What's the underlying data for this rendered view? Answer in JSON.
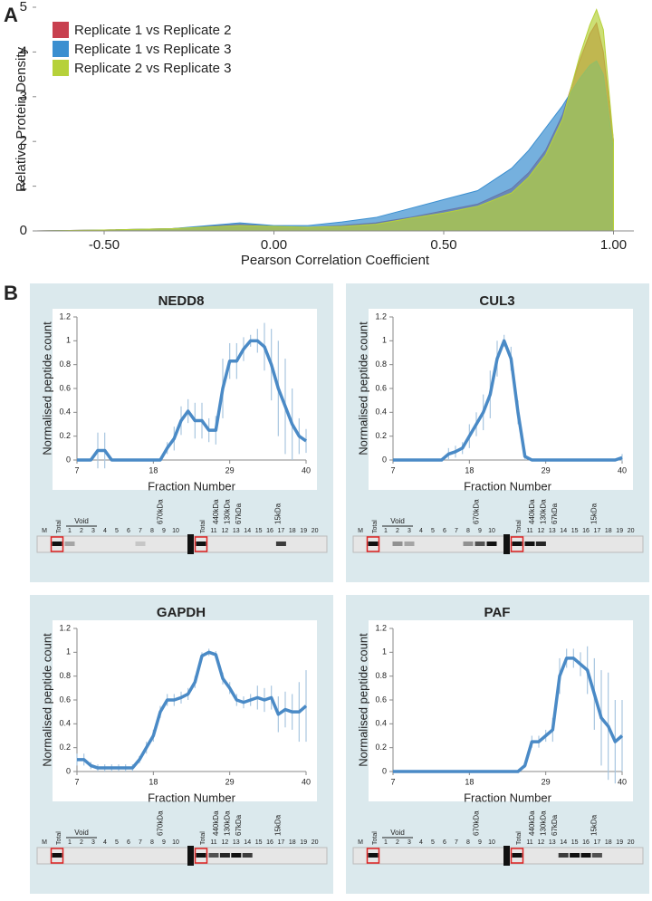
{
  "panel_labels": [
    "A",
    "B"
  ],
  "chart_data": [
    {
      "type": "area",
      "xlabel": "Pearson Correlation Coefficient",
      "ylabel": "Relative Protein Density",
      "x": [
        -0.7,
        -0.5,
        -0.3,
        -0.1,
        0,
        0.1,
        0.2,
        0.3,
        0.4,
        0.5,
        0.6,
        0.7,
        0.75,
        0.8,
        0.85,
        0.9,
        0.93,
        0.95,
        0.97,
        1.0
      ],
      "series": [
        {
          "name": "Replicate 1 vs Replicate 2",
          "color": "#c8404f",
          "values": [
            0,
            0.02,
            0.05,
            0.15,
            0.1,
            0.08,
            0.12,
            0.18,
            0.3,
            0.45,
            0.6,
            0.95,
            1.3,
            1.8,
            2.6,
            3.8,
            4.4,
            4.65,
            4.0,
            2.0
          ]
        },
        {
          "name": "Replicate 1 vs Replicate 3",
          "color": "#3b8fd0",
          "values": [
            0,
            0.02,
            0.05,
            0.18,
            0.12,
            0.12,
            0.2,
            0.3,
            0.5,
            0.7,
            0.9,
            1.4,
            1.8,
            2.3,
            2.8,
            3.4,
            3.7,
            3.8,
            3.5,
            1.8
          ]
        },
        {
          "name": "Replicate 2 vs Replicate 3",
          "color": "#b6d13a",
          "values": [
            0,
            0.02,
            0.05,
            0.12,
            0.1,
            0.08,
            0.1,
            0.15,
            0.28,
            0.4,
            0.55,
            0.85,
            1.2,
            1.7,
            2.5,
            3.9,
            4.6,
            4.95,
            4.5,
            2.0
          ]
        }
      ],
      "xlim": [
        -0.7,
        1.06
      ],
      "ylim": [
        0,
        5
      ],
      "xticks": [
        {
          "value": -0.5,
          "label": "-0.50"
        },
        {
          "value": 0,
          "label": "0.00"
        },
        {
          "value": 0.5,
          "label": "0.50"
        },
        {
          "value": 1,
          "label": "1.00"
        }
      ],
      "yticks": [
        0,
        1,
        2,
        3,
        4,
        5
      ],
      "legend": "upper left"
    },
    {
      "type": "line",
      "title": "NEDD8",
      "xlabel": "Fraction Number",
      "ylabel": "Normalised peptide count",
      "color": "#4a8ac6",
      "error_color": "#a9c6e0",
      "x": [
        7,
        8,
        9,
        10,
        11,
        12,
        13,
        14,
        15,
        16,
        17,
        18,
        19,
        20,
        21,
        22,
        23,
        24,
        25,
        26,
        27,
        28,
        29,
        30,
        31,
        32,
        33,
        34,
        35,
        36,
        37,
        38,
        39,
        40
      ],
      "values": [
        0,
        0,
        0,
        0.08,
        0.08,
        0,
        0,
        0,
        0,
        0,
        0,
        0,
        0,
        0.1,
        0.18,
        0.33,
        0.41,
        0.33,
        0.33,
        0.25,
        0.25,
        0.6,
        0.83,
        0.83,
        0.93,
        1,
        1,
        0.95,
        0.8,
        0.6,
        0.45,
        0.3,
        0.2,
        0.16
      ],
      "errors": [
        0,
        0,
        0,
        0.15,
        0.15,
        0,
        0,
        0,
        0,
        0,
        0,
        0,
        0,
        0.05,
        0.1,
        0.12,
        0.1,
        0.15,
        0.15,
        0.1,
        0.12,
        0.25,
        0.15,
        0.15,
        0.1,
        0.05,
        0.1,
        0.2,
        0.3,
        0.4,
        0.4,
        0.3,
        0.15,
        0.1
      ],
      "xlim": [
        7,
        40
      ],
      "ylim": [
        0,
        1.2
      ],
      "xticks": [
        7,
        18,
        29,
        40
      ],
      "yticks": [
        0,
        0.2,
        0.4,
        0.6,
        0.8,
        1,
        1.2
      ]
    },
    {
      "type": "line",
      "title": "CUL3",
      "xlabel": "Fraction Number",
      "ylabel": "Normalised peptide count",
      "color": "#4a8ac6",
      "error_color": "#a9c6e0",
      "x": [
        7,
        8,
        9,
        10,
        11,
        12,
        13,
        14,
        15,
        16,
        17,
        18,
        19,
        20,
        21,
        22,
        23,
        24,
        25,
        26,
        27,
        28,
        29,
        30,
        31,
        32,
        33,
        34,
        35,
        36,
        37,
        38,
        39,
        40
      ],
      "values": [
        0,
        0,
        0,
        0,
        0,
        0,
        0,
        0,
        0.05,
        0.07,
        0.1,
        0.2,
        0.3,
        0.4,
        0.55,
        0.85,
        1,
        0.85,
        0.4,
        0.03,
        0,
        0,
        0,
        0,
        0,
        0,
        0,
        0,
        0,
        0,
        0,
        0,
        0,
        0.02
      ],
      "errors": [
        0,
        0,
        0,
        0,
        0,
        0,
        0,
        0,
        0.05,
        0.05,
        0.05,
        0.1,
        0.1,
        0.15,
        0.2,
        0.15,
        0.05,
        0.1,
        0.1,
        0.03,
        0,
        0,
        0,
        0,
        0,
        0,
        0,
        0,
        0,
        0,
        0,
        0,
        0,
        0.03
      ],
      "xlim": [
        7,
        40
      ],
      "ylim": [
        0,
        1.2
      ],
      "xticks": [
        7,
        18,
        29,
        40
      ],
      "yticks": [
        0,
        0.2,
        0.4,
        0.6,
        0.8,
        1,
        1.2
      ]
    },
    {
      "type": "line",
      "title": "GAPDH",
      "xlabel": "Fraction Number",
      "ylabel": "Normalised peptide count",
      "color": "#4a8ac6",
      "error_color": "#a9c6e0",
      "x": [
        7,
        8,
        9,
        10,
        11,
        12,
        13,
        14,
        15,
        16,
        17,
        18,
        19,
        20,
        21,
        22,
        23,
        24,
        25,
        26,
        27,
        28,
        29,
        30,
        31,
        32,
        33,
        34,
        35,
        36,
        37,
        38,
        39,
        40
      ],
      "values": [
        0.1,
        0.1,
        0.05,
        0.03,
        0.03,
        0.03,
        0.03,
        0.03,
        0.03,
        0.1,
        0.2,
        0.3,
        0.5,
        0.6,
        0.6,
        0.62,
        0.65,
        0.75,
        0.97,
        1,
        0.98,
        0.78,
        0.7,
        0.6,
        0.58,
        0.6,
        0.62,
        0.6,
        0.62,
        0.48,
        0.52,
        0.5,
        0.5,
        0.55
      ],
      "errors": [
        0.05,
        0.05,
        0.03,
        0.03,
        0.03,
        0.03,
        0.03,
        0.03,
        0.03,
        0.03,
        0.05,
        0.05,
        0.05,
        0.05,
        0.05,
        0.05,
        0.05,
        0.05,
        0.03,
        0.03,
        0.03,
        0.05,
        0.05,
        0.05,
        0.05,
        0.05,
        0.1,
        0.1,
        0.1,
        0.15,
        0.15,
        0.15,
        0.25,
        0.3
      ],
      "xlim": [
        7,
        40
      ],
      "ylim": [
        0,
        1.2
      ],
      "xticks": [
        7,
        18,
        29,
        40
      ],
      "yticks": [
        0,
        0.2,
        0.4,
        0.6,
        0.8,
        1,
        1.2
      ]
    },
    {
      "type": "line",
      "title": "PAF",
      "xlabel": "Fraction Number",
      "ylabel": "Normalised peptide count",
      "color": "#4a8ac6",
      "error_color": "#a9c6e0",
      "x": [
        7,
        8,
        9,
        10,
        11,
        12,
        13,
        14,
        15,
        16,
        17,
        18,
        19,
        20,
        21,
        22,
        23,
        24,
        25,
        26,
        27,
        28,
        29,
        30,
        31,
        32,
        33,
        34,
        35,
        36,
        37,
        38,
        39,
        40
      ],
      "values": [
        0,
        0,
        0,
        0,
        0,
        0,
        0,
        0,
        0,
        0,
        0,
        0,
        0,
        0,
        0,
        0,
        0,
        0,
        0,
        0.05,
        0.25,
        0.25,
        0.3,
        0.35,
        0.8,
        0.95,
        0.95,
        0.9,
        0.85,
        0.65,
        0.45,
        0.38,
        0.25,
        0.3
      ],
      "errors": [
        0,
        0,
        0,
        0,
        0,
        0,
        0,
        0,
        0,
        0,
        0,
        0,
        0,
        0,
        0,
        0,
        0,
        0,
        0,
        0.02,
        0.05,
        0.05,
        0.05,
        0.1,
        0.15,
        0.08,
        0.08,
        0.1,
        0.2,
        0.3,
        0.4,
        0.45,
        0.35,
        0.3
      ],
      "xlim": [
        7,
        40
      ],
      "ylim": [
        0,
        1.2
      ],
      "xticks": [
        7,
        18,
        29,
        40
      ],
      "yticks": [
        0,
        0.2,
        0.4,
        0.6,
        0.8,
        1,
        1.2
      ]
    }
  ],
  "gels": [
    {
      "lanes": [
        "M",
        "Total",
        "1",
        "2",
        "3",
        "4",
        "5",
        "6",
        "7",
        "8",
        "9",
        "10",
        "Total",
        "11",
        "12",
        "13",
        "14",
        "15",
        "16",
        "17",
        "18",
        "19",
        "20"
      ],
      "void": "Void",
      "markers": [
        "670kDa",
        "440kDa",
        "130kDa",
        "67kDa",
        "15kDa"
      ]
    },
    {
      "lanes": [
        "M",
        "Total",
        "1",
        "2",
        "3",
        "4",
        "5",
        "6",
        "7",
        "8",
        "9",
        "10",
        "Total",
        "11",
        "12",
        "13",
        "14",
        "15",
        "16",
        "17",
        "18",
        "19",
        "20"
      ],
      "void": "Void",
      "markers": [
        "670kDa",
        "440kDa",
        "130kDa",
        "67kDa",
        "15kDa"
      ]
    },
    {
      "lanes": [
        "M",
        "Total",
        "1",
        "2",
        "3",
        "4",
        "5",
        "6",
        "7",
        "8",
        "9",
        "10",
        "Total",
        "11",
        "12",
        "13",
        "14",
        "15",
        "16",
        "17",
        "18",
        "19",
        "20"
      ],
      "void": "Void",
      "markers": [
        "670kDa",
        "440kDa",
        "130kDa",
        "67kDa",
        "15kDa"
      ]
    },
    {
      "lanes": [
        "M",
        "Total",
        "1",
        "2",
        "3",
        "4",
        "5",
        "6",
        "7",
        "8",
        "9",
        "10",
        "Total",
        "11",
        "12",
        "13",
        "14",
        "15",
        "16",
        "17",
        "18",
        "19",
        "20"
      ],
      "void": "Void",
      "markers": [
        "670kDa",
        "440kDa",
        "130kDa",
        "67kDa",
        "15kDa"
      ]
    }
  ]
}
